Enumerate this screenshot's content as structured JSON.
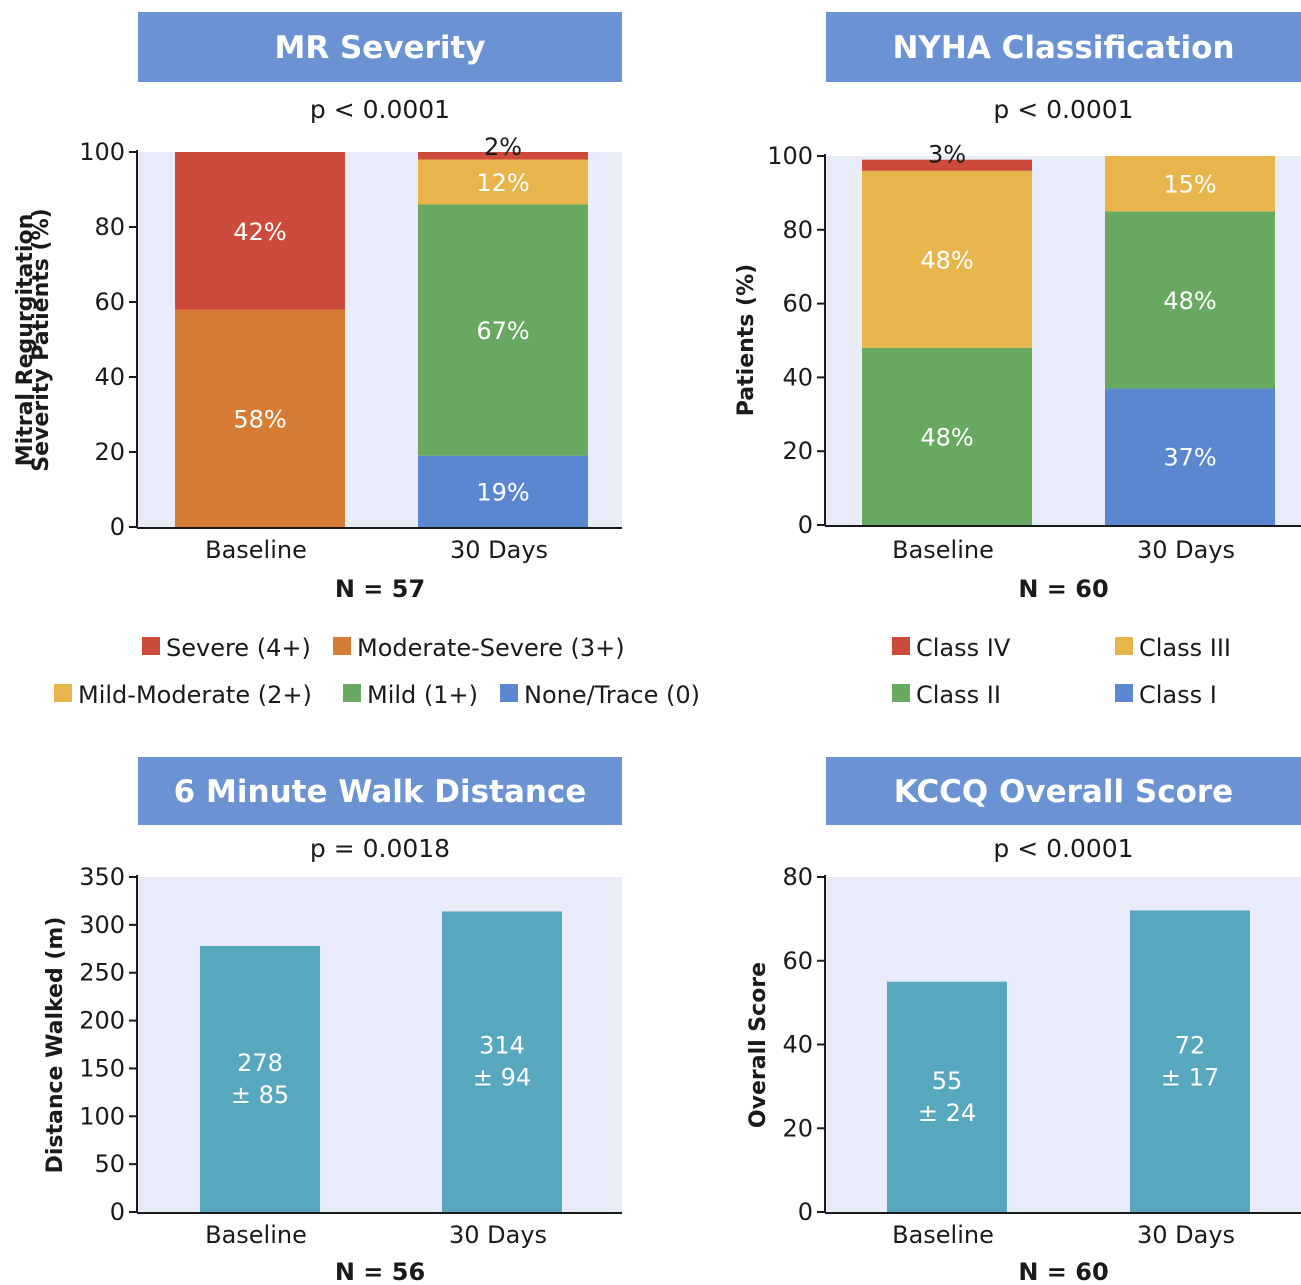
{
  "colors": {
    "header_bg": "#6b93d3",
    "plot_bg": "#e8ecf8",
    "severe": "#cc4b3c",
    "moderate_severe": "#d77c35",
    "mild_moderate": "#e7b54c",
    "mild": "#68a861",
    "none_trace": "#5b87d1",
    "class_iv": "#cc4b3c",
    "class_iii": "#e7b54c",
    "class_ii": "#68a861",
    "class_i": "#5b87d1",
    "teal": "#57a8bf"
  },
  "chart_data": [
    {
      "id": "mr",
      "type": "bar",
      "stacked": true,
      "title": "MR Severity",
      "subtitle": "p < 0.0001",
      "ylabel_lines": [
        "Mitral Regurgitation",
        "Severity Patients (%)"
      ],
      "xlabel": "N = 57",
      "categories": [
        "Baseline",
        "30 Days"
      ],
      "ylim": [
        0,
        100
      ],
      "yticks": [
        0,
        20,
        40,
        60,
        80,
        100
      ],
      "series": [
        {
          "name": "None/Trace (0)",
          "color_key": "none_trace",
          "values": [
            0,
            19
          ],
          "labels": [
            "",
            "19%"
          ]
        },
        {
          "name": "Mild (1+)",
          "color_key": "mild",
          "values": [
            0,
            67
          ],
          "labels": [
            "",
            "67%"
          ]
        },
        {
          "name": "Mild-Moderate (2+)",
          "color_key": "mild_moderate",
          "values": [
            0,
            12
          ],
          "labels": [
            "",
            "12%"
          ]
        },
        {
          "name": "Moderate-Severe (3+)",
          "color_key": "moderate_severe",
          "values": [
            58,
            0
          ],
          "labels": [
            "58%",
            ""
          ]
        },
        {
          "name": "Severe (4+)",
          "color_key": "severe",
          "values": [
            42,
            2
          ],
          "labels": [
            "42%",
            "2%"
          ]
        }
      ],
      "legend": {
        "placement": "bottom",
        "rows": [
          [
            "Severe (4+)",
            "Moderate-Severe (3+)"
          ],
          [
            "Mild-Moderate (2+)",
            "Mild (1+)",
            "None/Trace (0)"
          ]
        ]
      }
    },
    {
      "id": "nyha",
      "type": "bar",
      "stacked": true,
      "title": "NYHA Classification",
      "subtitle": "p < 0.0001",
      "ylabel_lines": [
        "Patients (%)"
      ],
      "xlabel": "N = 60",
      "categories": [
        "Baseline",
        "30 Days"
      ],
      "ylim": [
        0,
        100
      ],
      "yticks": [
        0,
        20,
        40,
        60,
        80,
        100
      ],
      "series": [
        {
          "name": "Class I",
          "color_key": "class_i",
          "values": [
            0,
            37
          ],
          "labels": [
            "",
            "37%"
          ]
        },
        {
          "name": "Class II",
          "color_key": "class_ii",
          "values": [
            48,
            48
          ],
          "labels": [
            "48%",
            "48%"
          ]
        },
        {
          "name": "Class III",
          "color_key": "class_iii",
          "values": [
            48,
            15
          ],
          "labels": [
            "48%",
            "15%"
          ]
        },
        {
          "name": "Class IV",
          "color_key": "class_iv",
          "values": [
            3,
            0
          ],
          "labels": [
            "3%",
            ""
          ]
        }
      ],
      "legend": {
        "placement": "bottom",
        "rows": [
          [
            "Class IV",
            "Class III"
          ],
          [
            "Class II",
            "Class I"
          ]
        ]
      }
    },
    {
      "id": "walk",
      "type": "bar",
      "stacked": false,
      "title": "6 Minute Walk Distance",
      "subtitle": "p = 0.0018",
      "ylabel_lines": [
        "Distance Walked (m)"
      ],
      "xlabel": "N = 56",
      "categories": [
        "Baseline",
        "30 Days"
      ],
      "ylim": [
        0,
        350
      ],
      "yticks": [
        0,
        50,
        100,
        150,
        200,
        250,
        300,
        350
      ],
      "values": [
        278,
        314
      ],
      "value_labels": [
        [
          "278",
          "± 85"
        ],
        [
          "314",
          "± 94"
        ]
      ],
      "color_key": "teal"
    },
    {
      "id": "kccq",
      "type": "bar",
      "stacked": false,
      "title": "KCCQ Overall Score",
      "subtitle": "p < 0.0001",
      "ylabel_lines": [
        "Overall Score"
      ],
      "xlabel": "N = 60",
      "categories": [
        "Baseline",
        "30 Days"
      ],
      "ylim": [
        0,
        80
      ],
      "yticks": [
        0,
        20,
        40,
        60,
        80
      ],
      "values": [
        55,
        72
      ],
      "value_labels": [
        [
          "55",
          "± 24"
        ],
        [
          "72",
          "± 17"
        ]
      ],
      "color_key": "teal"
    }
  ]
}
